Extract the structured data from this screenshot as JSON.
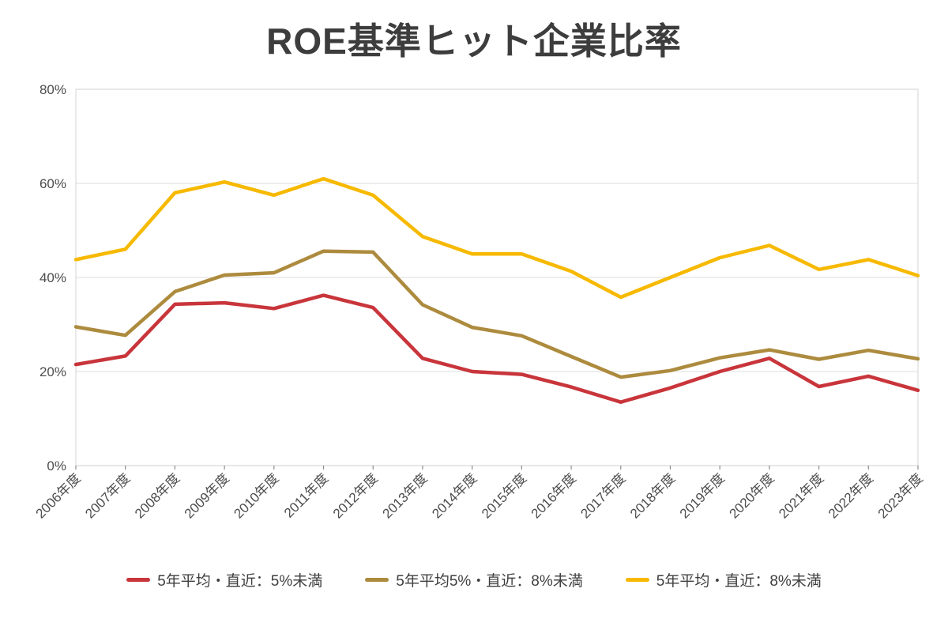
{
  "title": "ROE基準ヒット企業比率",
  "colors": {
    "title": "#3d3d3d",
    "axis_text": "#4d4d4d",
    "gridline": "#e4e4e4",
    "plot_border": "#dcdcdc",
    "tick": "#8c8c8c",
    "background": "#ffffff",
    "series_red": "#C8353B",
    "series_brown": "#AD8B3E",
    "series_yellow": "#F7B900"
  },
  "chart_data": {
    "type": "line",
    "title": "ROE基準ヒット企業比率",
    "categories": [
      "2006年度",
      "2007年度",
      "2008年度",
      "2009年度",
      "2010年度",
      "2011年度",
      "2012年度",
      "2013年度",
      "2014年度",
      "2015年度",
      "2016年度",
      "2017年度",
      "2018年度",
      "2019年度",
      "2020年度",
      "2021年度",
      "2022年度",
      "2023年度"
    ],
    "series": [
      {
        "name": "5年平均・直近：5%未満",
        "color": "#C8353B",
        "values": [
          21.5,
          23.3,
          34.3,
          34.6,
          33.4,
          36.2,
          33.6,
          22.8,
          20.0,
          19.4,
          16.7,
          13.5,
          16.5,
          20.0,
          22.8,
          16.8,
          19.0,
          16.0
        ]
      },
      {
        "name": "5年平均5%・直近：8%未満",
        "color": "#AD8B3E",
        "values": [
          29.5,
          27.7,
          37.0,
          40.5,
          41.0,
          45.6,
          45.4,
          34.2,
          29.4,
          27.6,
          23.2,
          18.8,
          20.2,
          22.9,
          24.6,
          22.6,
          24.5,
          22.7
        ]
      },
      {
        "name": "5年平均・直近：8%未満",
        "color": "#F7B900",
        "values": [
          43.8,
          46.0,
          58.0,
          60.3,
          57.5,
          61.0,
          57.5,
          48.7,
          45.0,
          45.0,
          41.3,
          35.8,
          40.0,
          44.2,
          46.8,
          41.7,
          43.8,
          40.4
        ]
      }
    ],
    "xlabel": "",
    "ylabel": "",
    "ylim": [
      0,
      80
    ],
    "ytick_step": 20,
    "ytick_suffix": "%",
    "grid": "horizontal",
    "x_label_rotation": -45,
    "legend_position": "bottom"
  }
}
